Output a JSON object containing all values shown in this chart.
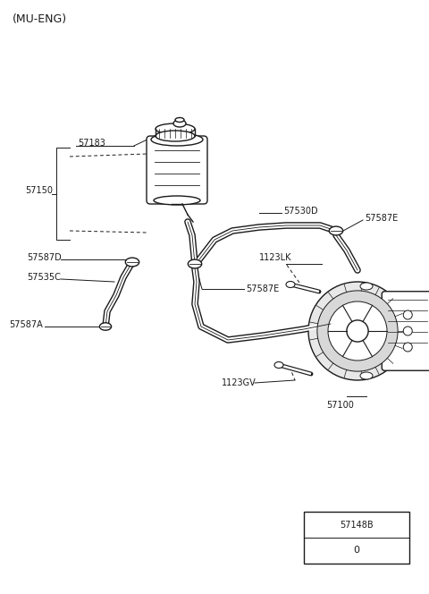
{
  "title": "(MU-ENG)",
  "bg_color": "#ffffff",
  "line_color": "#1a1a1a",
  "footer": {
    "label": "57148B",
    "sub": "0"
  }
}
